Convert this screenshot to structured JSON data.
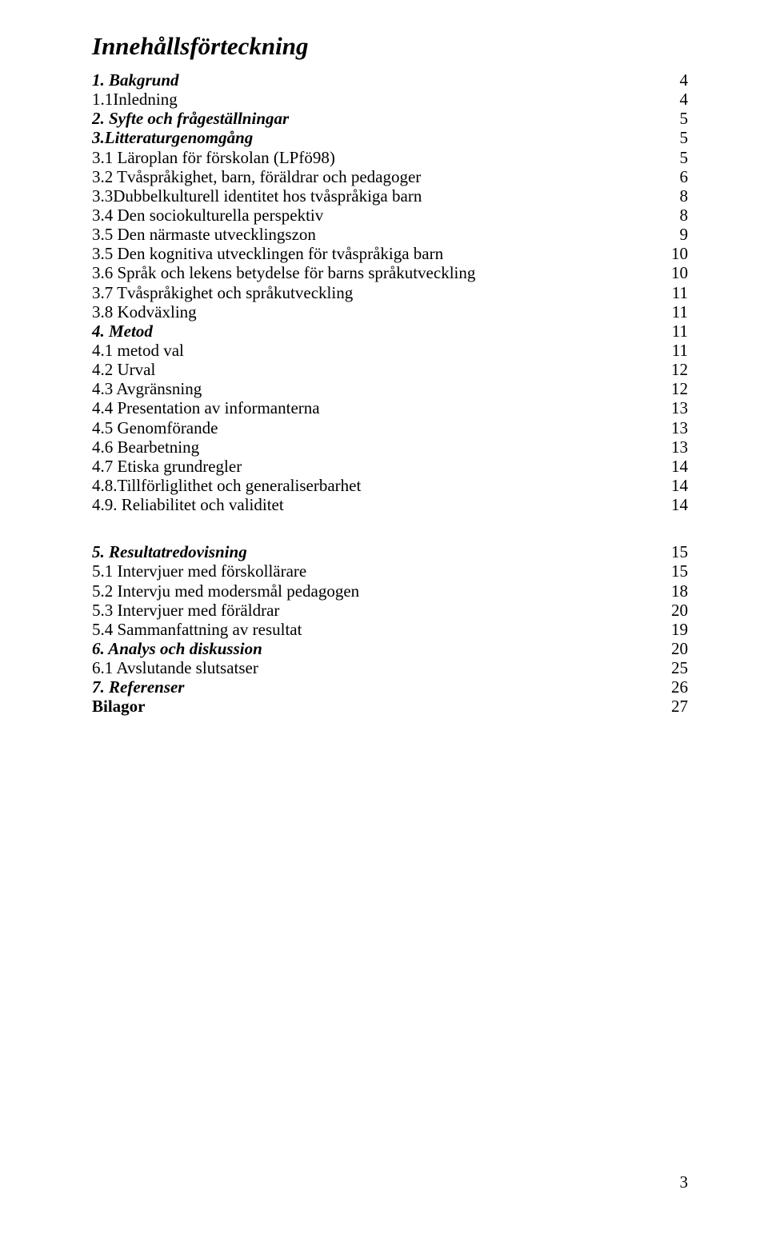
{
  "title": "Innehållsförteckning",
  "sections": [
    {
      "label": "1. Bakgrund",
      "page": "4",
      "bold": true,
      "italic": true
    },
    {
      "label": "1.1Inledning",
      "page": "4"
    },
    {
      "label": "2. Syfte och frågeställningar",
      "page": "5",
      "bold": true,
      "italic": true
    },
    {
      "label": "3.Litteraturgenomgång",
      "page": "5",
      "bold": true,
      "italic": true
    },
    {
      "label": "3.1 Läroplan för förskolan (LPfö98)",
      "page": "5"
    },
    {
      "label": "3.2 Tvåspråkighet, barn, föräldrar och pedagoger",
      "page": "6"
    },
    {
      "label": "3.3Dubbelkulturell identitet hos tvåspråkiga barn",
      "page": "8"
    },
    {
      "label": "3.4 Den sociokulturella perspektiv",
      "page": "8"
    },
    {
      "label": "3.5 Den närmaste utvecklingszon",
      "page": "9"
    },
    {
      "label": "3.5 Den kognitiva utvecklingen för tvåspråkiga barn",
      "page": "10"
    },
    {
      "label": "3.6 Språk och lekens betydelse för barns språkutveckling",
      "page": "10"
    },
    {
      "label": "3.7 Tvåspråkighet och språkutveckling",
      "page": "11"
    },
    {
      "label": "3.8 Kodväxling",
      "page": "11"
    },
    {
      "label": "4. Metod",
      "page": "11",
      "bold": true,
      "italic": true
    },
    {
      "label": "4.1 metod val",
      "page": "11"
    },
    {
      "label": "4.2 Urval",
      "page": "12"
    },
    {
      "label": "4.3 Avgränsning",
      "page": "12"
    },
    {
      "label": "4.4 Presentation av informanterna",
      "page": "13"
    },
    {
      "label": "4.5 Genomförande",
      "page": "13"
    },
    {
      "label": "4.6 Bearbetning",
      "page": "13"
    },
    {
      "label": "4.7 Etiska grundregler",
      "page": "14"
    },
    {
      "label": "4.8.Tillförliglithet och generaliserbarhet",
      "page": "14"
    },
    {
      "label": "4.9. Reliabilitet och validitet",
      "page": "14"
    }
  ],
  "sections2": [
    {
      "label": "5. Resultatredovisning",
      "page": "15",
      "bold": true,
      "italic": true
    },
    {
      "label": "5.1 Intervjuer med förskollärare",
      "page": "15"
    },
    {
      "label": "5.2 Intervju med modersmål pedagogen",
      "page": "18"
    },
    {
      "label": "5.3 Intervjuer med föräldrar",
      "page": "20"
    },
    {
      "label": "5.4 Sammanfattning av resultat",
      "page": "19"
    },
    {
      "label": "6. Analys och diskussion",
      "page": "20",
      "bold": true,
      "italic": true
    },
    {
      "label": "6.1 Avslutande slutsatser",
      "page": "25"
    },
    {
      "label": "7. Referenser",
      "page": "26",
      "bold": true,
      "italic": true
    },
    {
      "label": "Bilagor",
      "page": "27",
      "bold": true
    }
  ],
  "footer_page": "3"
}
